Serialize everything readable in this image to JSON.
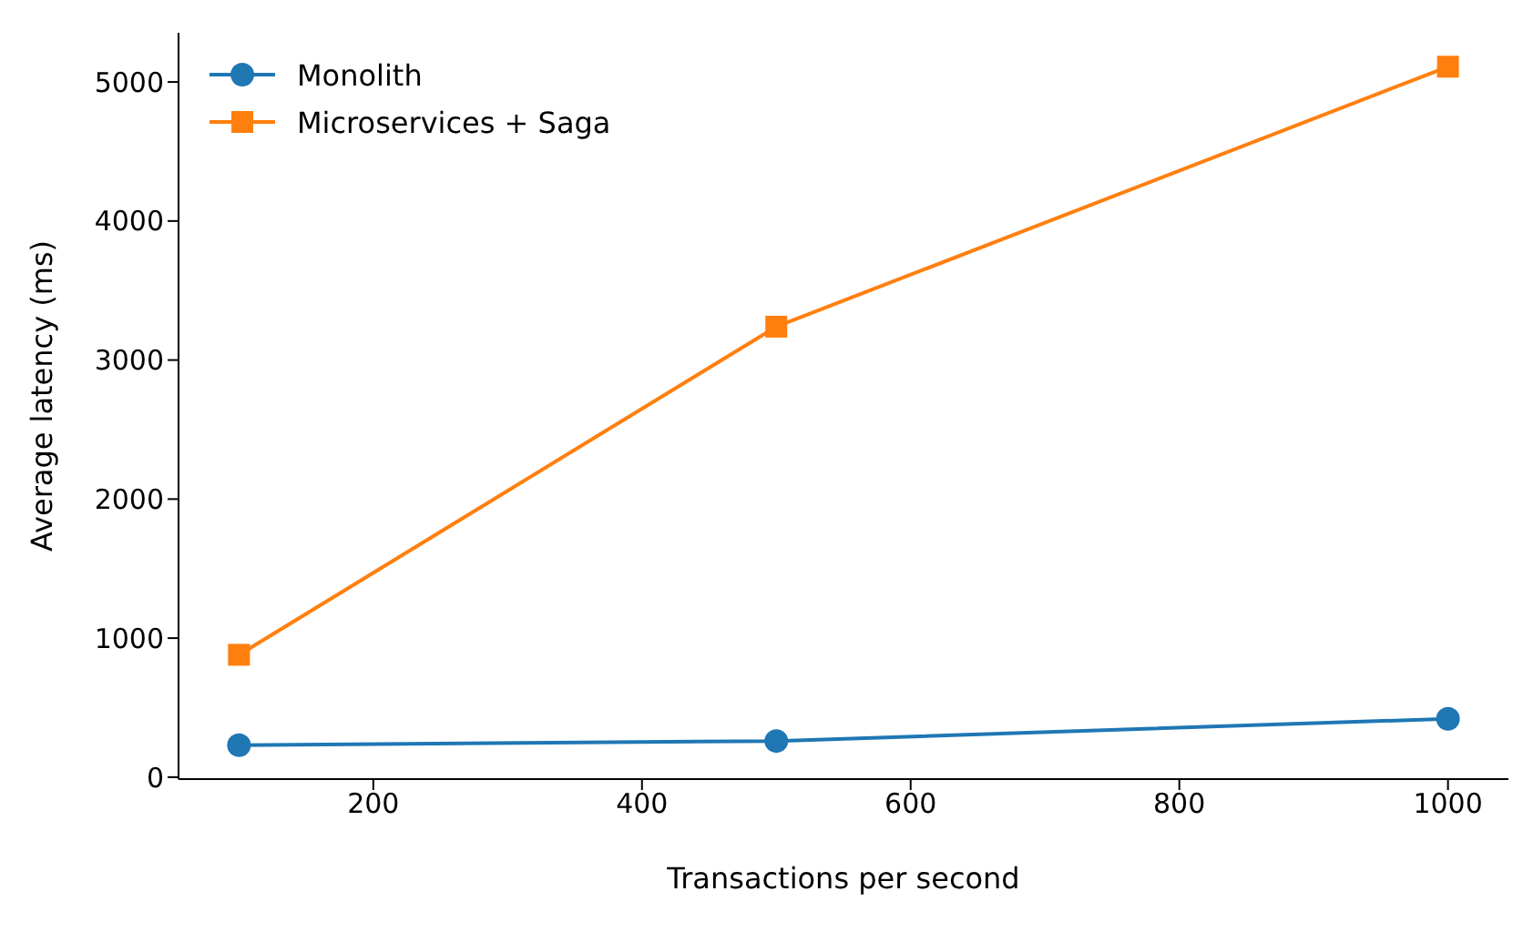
{
  "chart_data": {
    "type": "line",
    "xlabel": "Transactions per second",
    "ylabel": "Average latency (ms)",
    "x": [
      100,
      500,
      1000
    ],
    "series": [
      {
        "name": "Monolith",
        "color": "#1f77b4",
        "values": [
          230,
          260,
          420
        ],
        "marker": "circle"
      },
      {
        "name": "Microservices + Saga",
        "color": "#ff7f0e",
        "values": [
          880,
          3240,
          5110
        ],
        "marker": "square"
      }
    ],
    "xlim": [
      55,
      1045
    ],
    "xticks": [
      200,
      400,
      600,
      800,
      1000
    ],
    "ylim": [
      -14,
      5354
    ],
    "yticks": [
      0,
      1000,
      2000,
      3000,
      4000,
      5000
    ],
    "legend": "top left",
    "grid": false,
    "line_style": "solid"
  }
}
